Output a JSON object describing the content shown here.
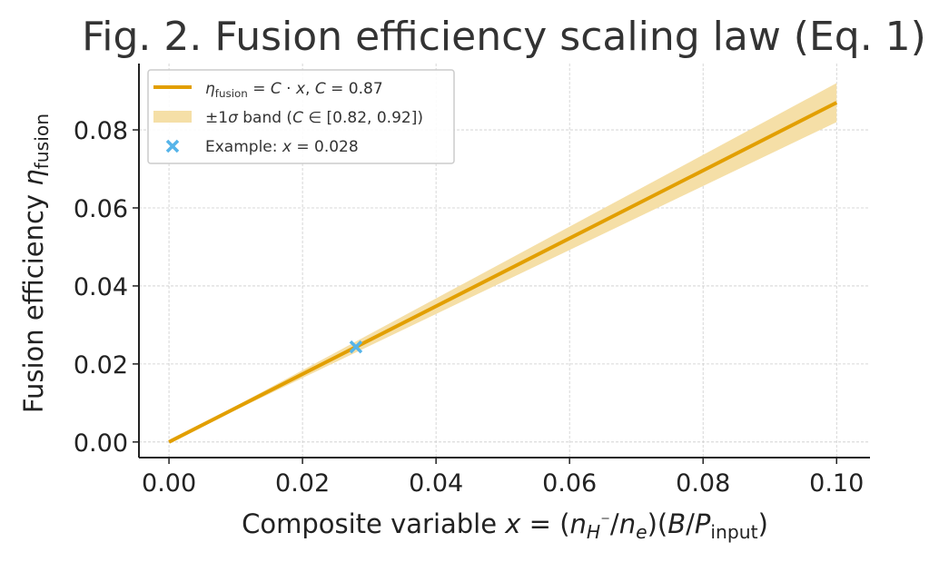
{
  "chart_data": {
    "type": "line",
    "title": "Fig. 2. Fusion efficiency scaling law (Eq. 1)",
    "xlabel": "Composite variable x = (nH⁻/ne)(B/Pinput)",
    "ylabel": "Fusion efficiency ηfusion",
    "xlim": [
      -0.0045,
      0.105
    ],
    "ylim": [
      -0.004,
      0.097
    ],
    "x_ticks": [
      0.0,
      0.02,
      0.04,
      0.06,
      0.08,
      0.1
    ],
    "x_tick_labels": [
      "0.00",
      "0.02",
      "0.04",
      "0.06",
      "0.08",
      "0.10"
    ],
    "y_ticks": [
      0.0,
      0.02,
      0.04,
      0.06,
      0.08
    ],
    "y_tick_labels": [
      "0.00",
      "0.02",
      "0.04",
      "0.06",
      "0.08"
    ],
    "grid": true,
    "legend_position": "top-left",
    "series": [
      {
        "name": "ηfusion = C · x, C = 0.87",
        "kind": "line",
        "color": "#e29f00",
        "x": [
          0.0,
          0.1
        ],
        "y": [
          0.0,
          0.087
        ]
      },
      {
        "name": "±1σ band (C ∈ [0.82, 0.92])",
        "kind": "band",
        "color": "#f5dfa7",
        "x": [
          0.0,
          0.1
        ],
        "y_low": [
          0.0,
          0.082
        ],
        "y_high": [
          0.0,
          0.092
        ]
      },
      {
        "name": "Example: x = 0.028",
        "kind": "marker",
        "color": "#56b4e9",
        "x": [
          0.028
        ],
        "y": [
          0.02436
        ]
      }
    ]
  }
}
